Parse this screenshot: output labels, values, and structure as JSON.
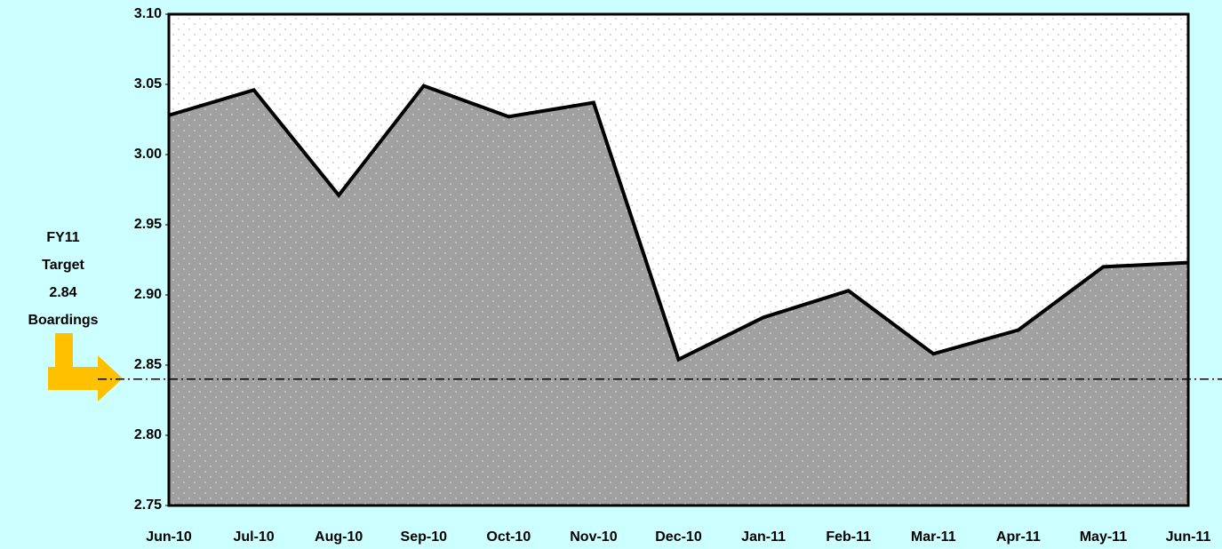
{
  "chart_data": {
    "type": "area",
    "categories": [
      "Jun-10",
      "Jul-10",
      "Aug-10",
      "Sep-10",
      "Oct-10",
      "Nov-10",
      "Dec-10",
      "Jan-11",
      "Feb-11",
      "Mar-11",
      "Apr-11",
      "May-11",
      "Jun-11"
    ],
    "values": [
      3.028,
      3.046,
      2.971,
      3.049,
      3.027,
      3.037,
      2.854,
      2.884,
      2.903,
      2.858,
      2.875,
      2.92,
      2.923
    ],
    "color": "#a0a0a0",
    "ylim": [
      2.75,
      3.1
    ],
    "yticks": [
      {
        "value": 2.75,
        "label": "2.75"
      },
      {
        "value": 2.8,
        "label": "2.80"
      },
      {
        "value": 2.85,
        "label": "2.85"
      },
      {
        "value": 2.9,
        "label": "2.90"
      },
      {
        "value": 2.95,
        "label": "2.95"
      },
      {
        "value": 3.0,
        "label": "3.00"
      },
      {
        "value": 3.05,
        "label": "3.05"
      },
      {
        "value": 3.1,
        "label": "3.10"
      }
    ],
    "target": 2.84,
    "annotation": [
      "FY11",
      "Target",
      "2.84",
      "Boardings"
    ]
  }
}
